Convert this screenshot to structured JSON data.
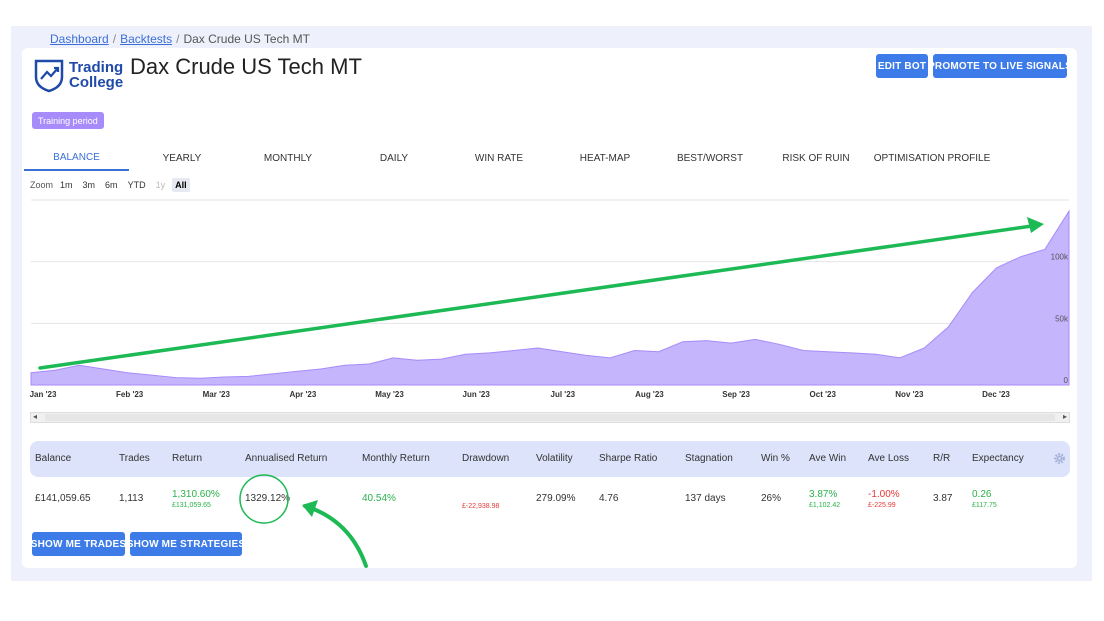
{
  "breadcrumb": {
    "dashboard": "Dashboard",
    "backtests": "Backtests",
    "current": "Dax Crude US Tech MT",
    "sep": "/"
  },
  "logo": {
    "line1": "Trading",
    "line2": "College"
  },
  "page_title": "Dax Crude US Tech MT",
  "buttons": {
    "edit_bot": "EDIT BOT",
    "promote": "PROMOTE TO LIVE SIGNALS",
    "show_trades": "SHOW ME TRADES",
    "show_strategies": "SHOW ME STRATEGIES"
  },
  "badge": "Training period",
  "tabs": [
    "BALANCE",
    "YEARLY",
    "MONTHLY",
    "DAILY",
    "WIN RATE",
    "HEAT-MAP",
    "BEST/WORST",
    "RISK OF RUIN",
    "OPTIMISATION PROFILE"
  ],
  "zoom": {
    "label": "Zoom",
    "options": [
      "1m",
      "3m",
      "6m",
      "YTD",
      "1y",
      "All"
    ],
    "selected": "All",
    "disabled": "1y"
  },
  "chart_data": {
    "type": "area",
    "x_labels": [
      "Jan '23",
      "Feb '23",
      "Mar '23",
      "Apr '23",
      "May '23",
      "Jun '23",
      "Jul '23",
      "Aug '23",
      "Sep '23",
      "Oct '23",
      "Nov '23",
      "Dec '23"
    ],
    "y_ticks": [
      "0",
      "50k",
      "100k"
    ],
    "ylim": [
      0,
      150000
    ],
    "series": [
      {
        "values": [
          10000,
          12000,
          16000,
          13000,
          10000,
          8000,
          6000,
          5500,
          6500,
          7000,
          9000,
          11000,
          13000,
          16000,
          17000,
          22000,
          20000,
          21000,
          25000,
          26000,
          28000,
          30000,
          27000,
          24000,
          22000,
          28000,
          27000,
          35000,
          36000,
          34000,
          37000,
          33000,
          28000,
          27000,
          26000,
          25000,
          22000,
          30000,
          47000,
          75000,
          95000,
          104000,
          110000,
          141000
        ]
      }
    ],
    "color": "#c4b5fd"
  },
  "stats": {
    "headers": [
      "Balance",
      "Trades",
      "Return",
      "Annualised Return",
      "Monthly Return",
      "Drawdown",
      "Volatility",
      "Sharpe Ratio",
      "Stagnation",
      "Win %",
      "Ave Win",
      "Ave Loss",
      "R/R",
      "Expectancy"
    ],
    "balance": "£141,059.65",
    "trades": "1,113",
    "return_pct": "1,310.60%",
    "return_abs": "£131,059.65",
    "annualised": "1329.12%",
    "monthly": "40.54%",
    "drawdown": "£-22,938.98",
    "volatility": "279.09%",
    "sharpe": "4.76",
    "stagnation": "137 days",
    "win_pct": "26%",
    "ave_win_pct": "3.87%",
    "ave_win_abs": "£1,102.42",
    "ave_loss_pct": "-1.00%",
    "ave_loss_abs": "£-225.99",
    "rr": "3.87",
    "expectancy": "0.26",
    "expectancy_abs": "£117.75"
  },
  "colors": {
    "accent": "#3d7be8",
    "arrow": "#1db954",
    "badge": "#a78bfa",
    "area": "#c4b5fd"
  }
}
